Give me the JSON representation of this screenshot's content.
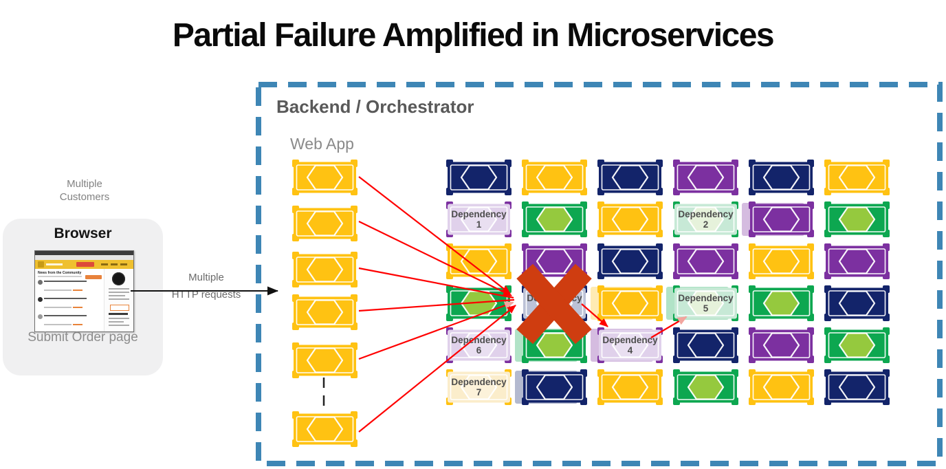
{
  "title": "Partial Failure Amplified in Microservices",
  "client": {
    "customers_caption": [
      "Multiple",
      "Customers"
    ],
    "browser_card": {
      "title": "Browser",
      "caption": "Submit Order page",
      "thumbnail_heading": "News from the Community"
    }
  },
  "request_arrow": {
    "label": [
      "Multiple",
      "HTTP requests"
    ]
  },
  "backend": {
    "title": "Backend / Orchestrator",
    "web_app": {
      "label": "Web App",
      "instance_count": 6
    }
  },
  "grid": {
    "columns": 6,
    "rows": 6,
    "cells": [
      {
        "c": "navy"
      },
      {
        "c": "yellow"
      },
      {
        "c": "navy"
      },
      {
        "c": "purple"
      },
      {
        "c": "navy"
      },
      {
        "c": "yellow"
      },
      {
        "c": "purple",
        "dep": "Dependency",
        "num": "1"
      },
      {
        "c": "green"
      },
      {
        "c": "yellow"
      },
      {
        "c": "green",
        "dep": "Dependency",
        "num": "2"
      },
      {
        "c": "purple",
        "ghost": true
      },
      {
        "c": "green"
      },
      {
        "c": "yellow"
      },
      {
        "c": "purple"
      },
      {
        "c": "navy"
      },
      {
        "c": "purple"
      },
      {
        "c": "yellow"
      },
      {
        "c": "purple"
      },
      {
        "c": "green"
      },
      {
        "c": "navy",
        "dep": "Dependency",
        "num": "3",
        "x_mark": true
      },
      {
        "c": "yellow",
        "ghost": true
      },
      {
        "c": "green",
        "dep": "Dependency",
        "num": "5",
        "ghost": true
      },
      {
        "c": "green"
      },
      {
        "c": "navy"
      },
      {
        "c": "purple",
        "dep": "Dependency",
        "num": "6"
      },
      {
        "c": "green",
        "ghost": true
      },
      {
        "c": "purple",
        "dep": "Dependency",
        "num": "4",
        "ghost": true
      },
      {
        "c": "navy"
      },
      {
        "c": "purple"
      },
      {
        "c": "green"
      },
      {
        "c": "yellow",
        "dep": "Dependency",
        "num": "7"
      },
      {
        "c": "navy",
        "ghost": true
      },
      {
        "c": "yellow"
      },
      {
        "c": "green"
      },
      {
        "c": "yellow"
      },
      {
        "c": "navy"
      }
    ]
  },
  "colors": {
    "boundary_blue": "#3E86B5",
    "failure_x": "#CF3D10",
    "arrow_red": "#FF0000",
    "arrow_pink": "#F2A59E",
    "request_arrow_black": "#111111",
    "dep_text": "#4D4D4D",
    "palette": {
      "navy": {
        "base": "#13246A",
        "fade": "#BCC2D6"
      },
      "yellow": {
        "base": "#FFC212",
        "fade": "#FBEDCB"
      },
      "purple": {
        "base": "#7C30A0",
        "fade": "#E0D1EB"
      },
      "green": {
        "base": "#0DA750",
        "fade": "#C7E9D6",
        "hex": "#95C93E",
        "hexFade": "#E6F2DB"
      }
    }
  }
}
